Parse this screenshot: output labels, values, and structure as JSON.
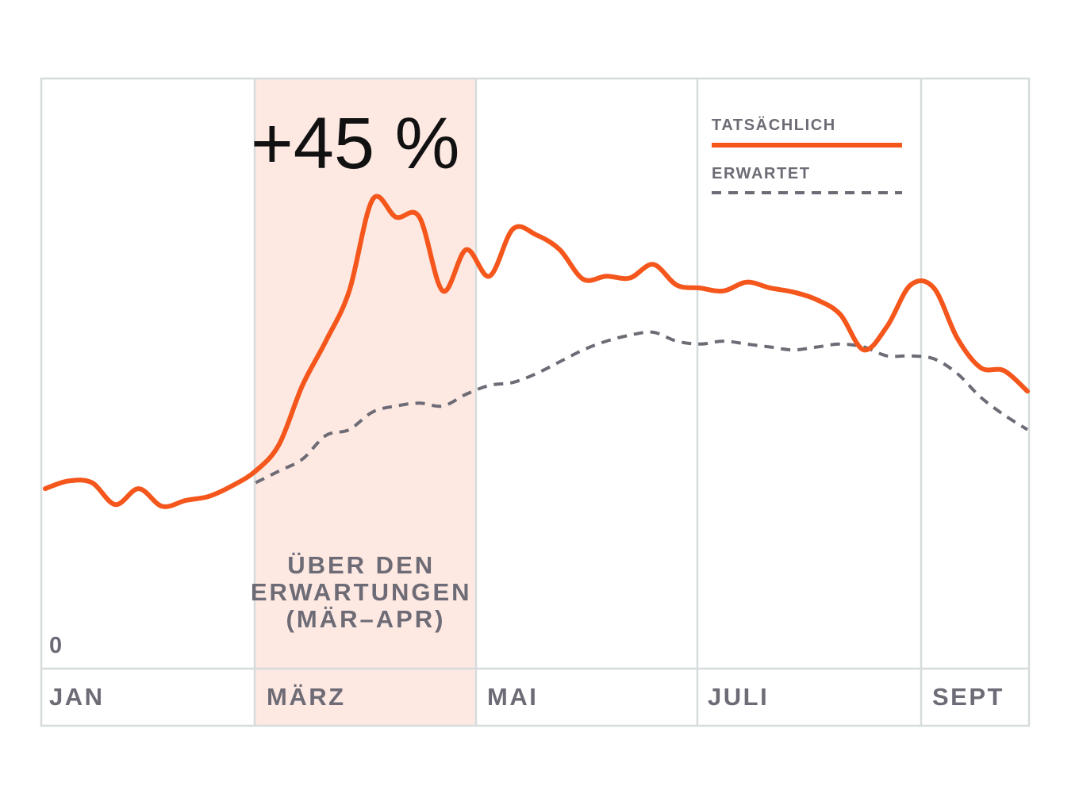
{
  "chart_data": {
    "type": "line",
    "title": "",
    "xlabel": "",
    "ylabel": "",
    "x_tick_labels": [
      "JAN",
      "MÄRZ",
      "MAI",
      "JULI",
      "SEPT"
    ],
    "y_tick_labels": [
      "0"
    ],
    "xlim": [
      0,
      8.4
    ],
    "ylim": [
      0,
      100
    ],
    "grid": true,
    "legend_position": "top-right",
    "highlight": {
      "x_start": 2,
      "x_end": 4,
      "label": "ÜBER DEN ERWARTUNGEN (MÄR–APR)",
      "color": "#fde8e2"
    },
    "callout": "+45 %",
    "series": [
      {
        "name": "TATSÄCHLICH",
        "color": "#f4561b",
        "style": "solid",
        "x": [
          0.0,
          0.2,
          0.4,
          0.6,
          0.8,
          1.0,
          1.2,
          1.4,
          1.6,
          1.8,
          2.0,
          2.2,
          2.4,
          2.6,
          2.8,
          3.0,
          3.2,
          3.4,
          3.6,
          3.8,
          4.0,
          4.2,
          4.4,
          4.6,
          4.8,
          5.0,
          5.2,
          5.4,
          5.6,
          5.8,
          6.0,
          6.2,
          6.4,
          6.6,
          6.8,
          7.0,
          7.2,
          7.4,
          7.6,
          7.8,
          8.0,
          8.2,
          8.4
        ],
        "values": [
          30.5,
          31.8,
          31.5,
          27.8,
          30.5,
          27.5,
          28.5,
          29.2,
          31.0,
          33.5,
          38.0,
          48.0,
          55.5,
          64.0,
          79.5,
          76.5,
          76.5,
          64.0,
          71.0,
          66.5,
          74.5,
          73.5,
          71.0,
          66.0,
          66.5,
          66.2,
          68.5,
          65.0,
          64.5,
          64.0,
          65.5,
          64.5,
          63.8,
          62.5,
          60.0,
          54.0,
          58.0,
          65.0,
          64.5,
          56.0,
          51.0,
          50.5,
          47.0
        ],
        "y_axis_note": "values estimated from pixel positions, 0 at baseline"
      },
      {
        "name": "ERWARTET",
        "color": "#6d6b75",
        "style": "dashed",
        "x": [
          1.8,
          2.0,
          2.2,
          2.4,
          2.6,
          2.8,
          3.0,
          3.2,
          3.4,
          3.6,
          3.8,
          4.0,
          4.2,
          4.4,
          4.6,
          4.8,
          5.0,
          5.2,
          5.4,
          5.6,
          5.8,
          6.0,
          6.2,
          6.4,
          6.6,
          6.8,
          7.0,
          7.2,
          7.4,
          7.6,
          7.8,
          8.0,
          8.2,
          8.4
        ],
        "values": [
          31.5,
          33.5,
          35.5,
          39.5,
          40.5,
          43.5,
          44.5,
          45.0,
          44.5,
          46.5,
          48.0,
          48.5,
          50.0,
          52.0,
          54.0,
          55.5,
          56.5,
          57.0,
          55.5,
          55.0,
          55.5,
          55.0,
          54.5,
          54.0,
          54.5,
          55.0,
          54.5,
          53.0,
          53.0,
          52.5,
          50.0,
          46.0,
          43.0,
          40.5
        ]
      }
    ]
  }
}
